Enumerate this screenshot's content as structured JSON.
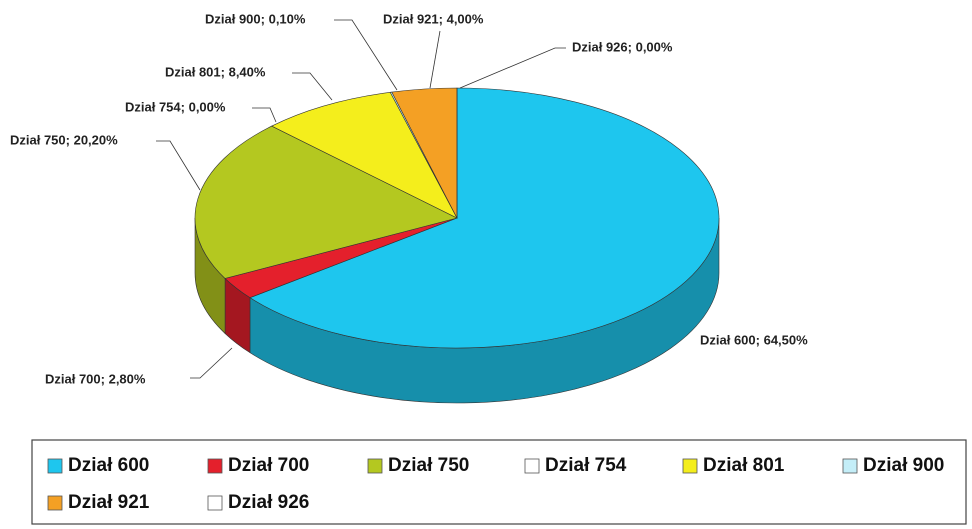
{
  "chart_data": {
    "type": "pie",
    "categories": [
      "Dział 600",
      "Dział 700",
      "Dział 750",
      "Dział 754",
      "Dział 801",
      "Dział 900",
      "Dział 921",
      "Dział 926"
    ],
    "values": [
      64.5,
      2.8,
      20.2,
      0,
      8.4,
      0.1,
      4.0,
      0
    ],
    "value_labels": [
      "Dział 600; 64,50%",
      "Dział 700; 2,80%",
      "Dział 750; 20,20%",
      "Dział 754; 0,00%",
      "Dział 801; 8,40%",
      "Dział 900; 0,10%",
      "Dział 921; 4,00%",
      "Dział 926; 0,00%"
    ],
    "colors": [
      "#1ec6ee",
      "#e4202c",
      "#b4c820",
      "#ffffff",
      "#f4ee1c",
      "#c4eef8",
      "#f4a024",
      "#ffffff"
    ],
    "legend": "bottom"
  }
}
